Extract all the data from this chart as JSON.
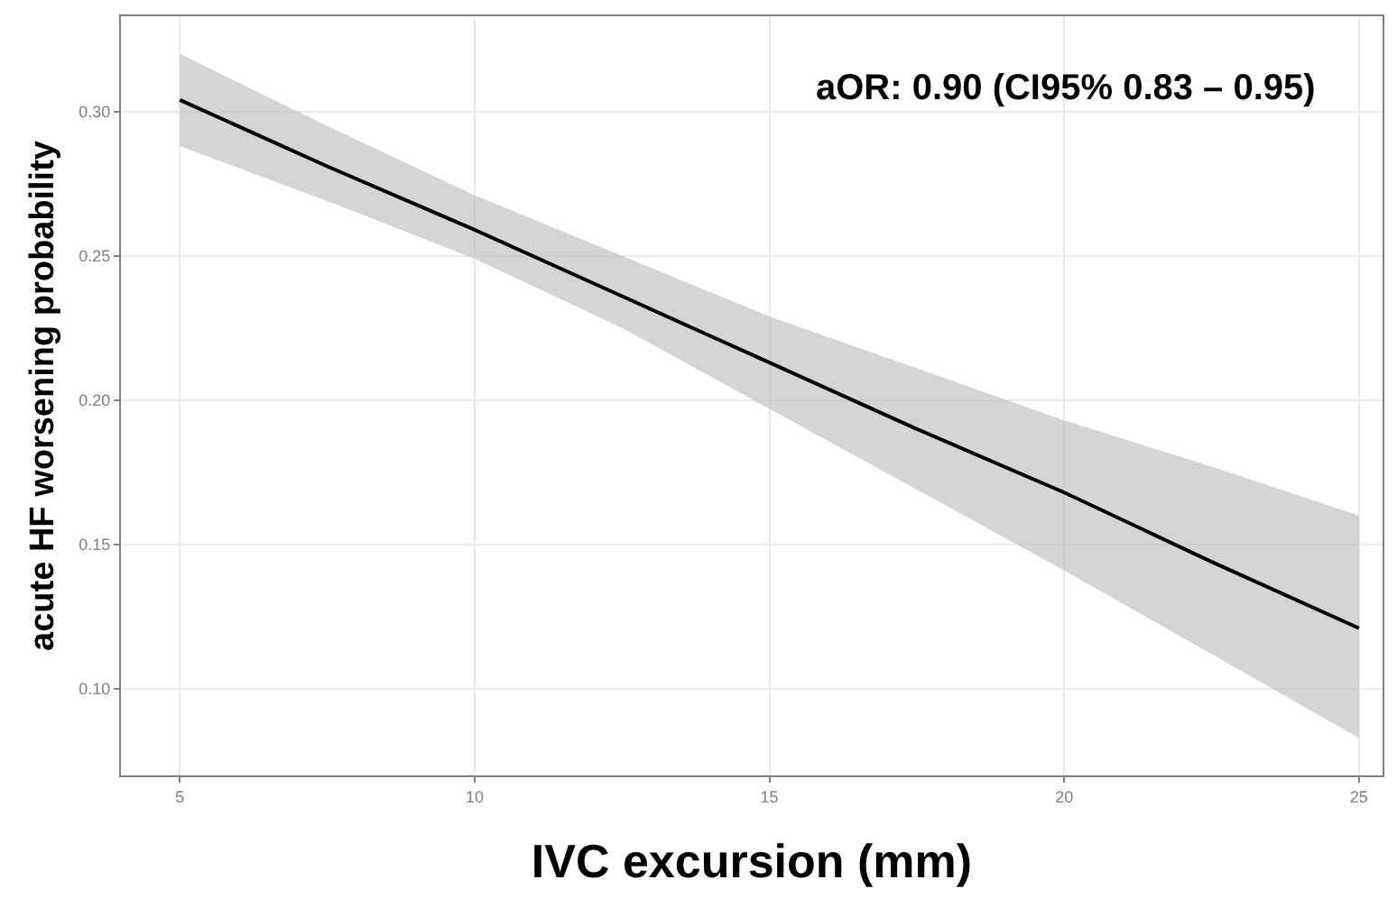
{
  "chart_data": {
    "type": "line",
    "xlabel": "IVC excursion (mm)",
    "ylabel": "acute HF worsening probability",
    "x": [
      5,
      7.5,
      10,
      12.5,
      15,
      17.5,
      20,
      22.5,
      25
    ],
    "series": [
      {
        "color": "#000000",
        "values": [
          0.304,
          0.281,
          0.259,
          0.236,
          0.213,
          0.19,
          0.168,
          0.144,
          0.121
        ],
        "lower": [
          0.288,
          0.269,
          0.249,
          0.225,
          0.197,
          0.169,
          0.141,
          0.112,
          0.083
        ],
        "upper": [
          0.32,
          0.295,
          0.271,
          0.25,
          0.229,
          0.211,
          0.193,
          0.177,
          0.16
        ]
      }
    ],
    "xlim": [
      4,
      25.4
    ],
    "xticks": [
      5,
      10,
      15,
      20,
      25
    ],
    "ylim": [
      0.07,
      0.333
    ],
    "yticks": [
      {
        "value": 0.1,
        "label": "0.10"
      },
      {
        "value": 0.15,
        "label": "0.15"
      },
      {
        "value": 0.2,
        "label": "0.20"
      },
      {
        "value": 0.25,
        "label": "0.25"
      },
      {
        "value": 0.3,
        "label": "0.30"
      }
    ],
    "annotations": [
      "aOR: 0.90 (CI95% 0.83 – 0.95)"
    ],
    "grid": true,
    "marker": "none",
    "line_style": "solid"
  }
}
